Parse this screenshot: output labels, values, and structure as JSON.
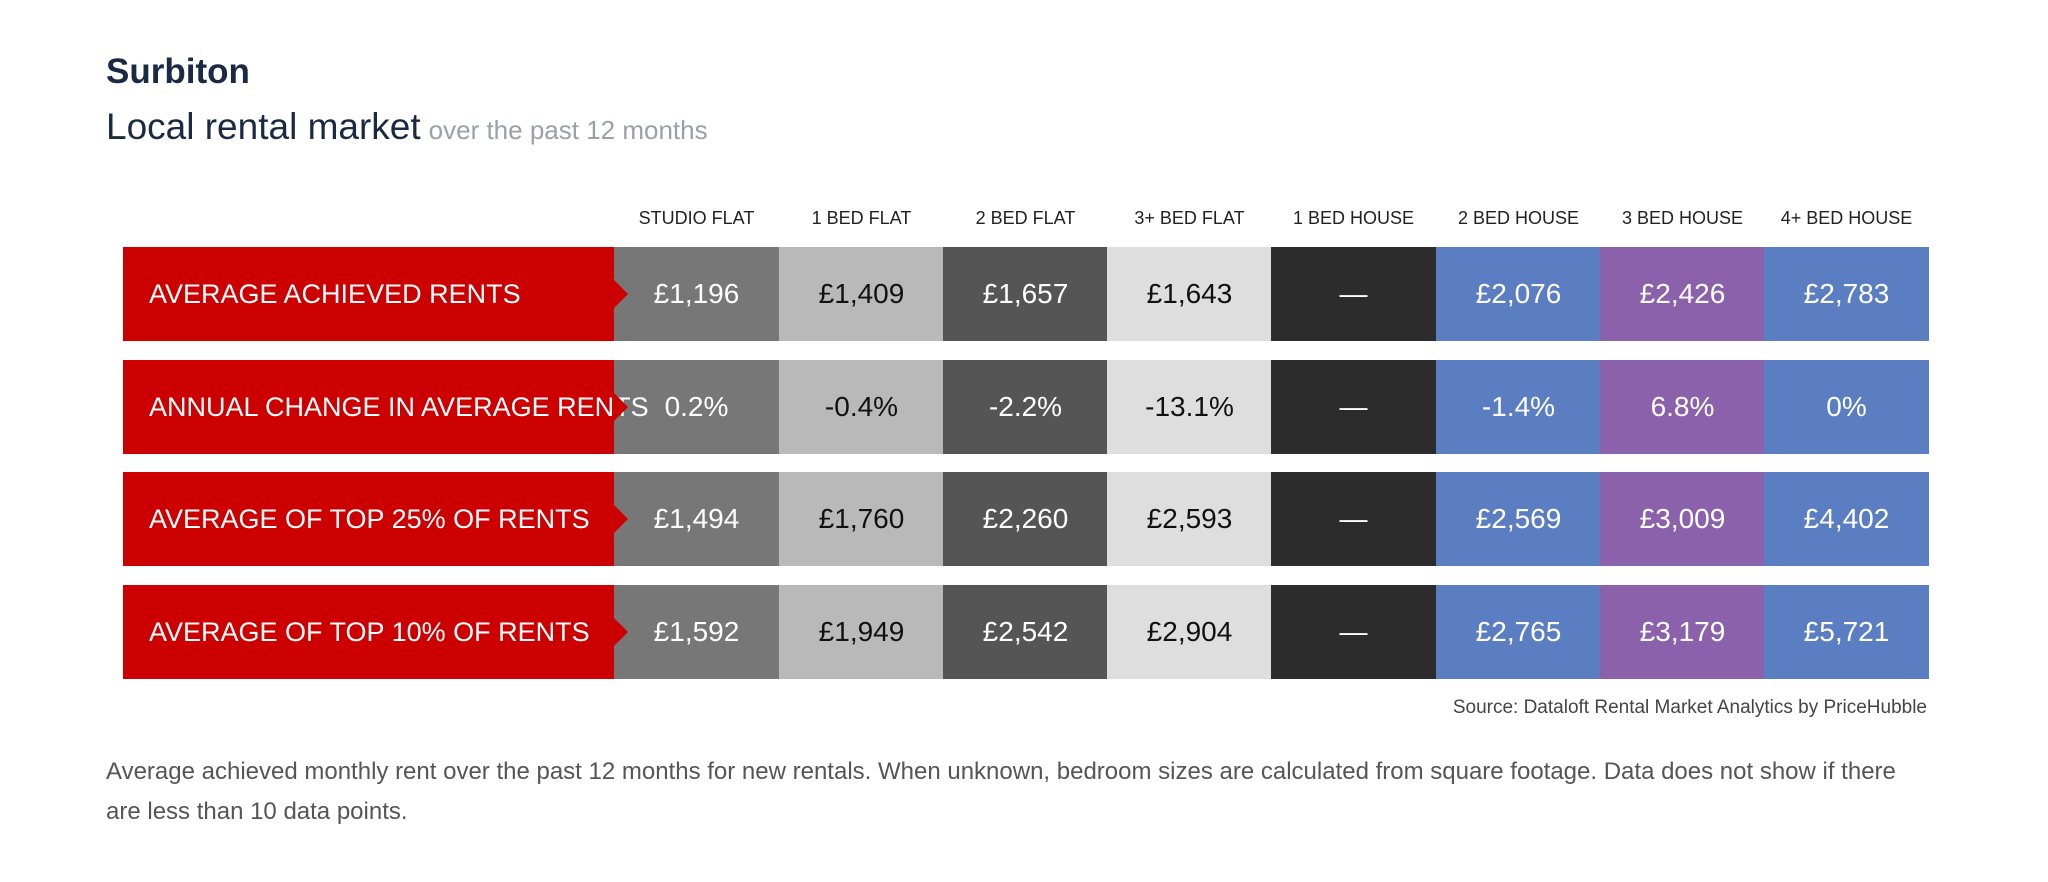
{
  "header": {
    "title": "Surbiton",
    "subtitle": "Local rental market",
    "subtitle_note": "over the past 12 months"
  },
  "chart_data": {
    "type": "table",
    "columns": [
      "STUDIO FLAT",
      "1 BED FLAT",
      "2 BED FLAT",
      "3+ BED FLAT",
      "1 BED HOUSE",
      "2 BED HOUSE",
      "3 BED HOUSE",
      "4+ BED HOUSE"
    ],
    "rows": [
      {
        "label": "AVERAGE ACHIEVED RENTS",
        "values": [
          "£1,196",
          "£1,409",
          "£1,657",
          "£1,643",
          "—",
          "£2,076",
          "£2,426",
          "£2,783"
        ]
      },
      {
        "label": "ANNUAL CHANGE IN AVERAGE RENTS",
        "values": [
          "0.2%",
          "-0.4%",
          "-2.2%",
          "-13.1%",
          "—",
          "-1.4%",
          "6.8%",
          "0%"
        ]
      },
      {
        "label": "AVERAGE OF TOP 25% OF RENTS",
        "values": [
          "£1,494",
          "£1,760",
          "£2,260",
          "£2,593",
          "—",
          "£2,569",
          "£3,009",
          "£4,402"
        ]
      },
      {
        "label": "AVERAGE OF TOP 10% OF RENTS",
        "values": [
          "£1,592",
          "£1,949",
          "£2,542",
          "£2,904",
          "—",
          "£2,765",
          "£3,179",
          "£5,721"
        ]
      }
    ],
    "colors": {
      "row_label": "#cc0000",
      "studio_flat": "#777777",
      "1_bed_flat": "#b9b9b9",
      "2_bed_flat": "#555555",
      "3_bed_flat": "#dedede",
      "1_bed_house": "#2c2c2c",
      "2_bed_house": "#5b7ec2",
      "3_bed_house": "#8a61aa",
      "4_bed_house": "#5b7ec2"
    }
  },
  "source": "Source: Dataloft Rental Market Analytics by PriceHubble",
  "footnote": "Average achieved monthly rent over the past 12 months for new rentals. When unknown, bedroom sizes are calculated from square footage. Data does not show if there are less than 10 data points."
}
